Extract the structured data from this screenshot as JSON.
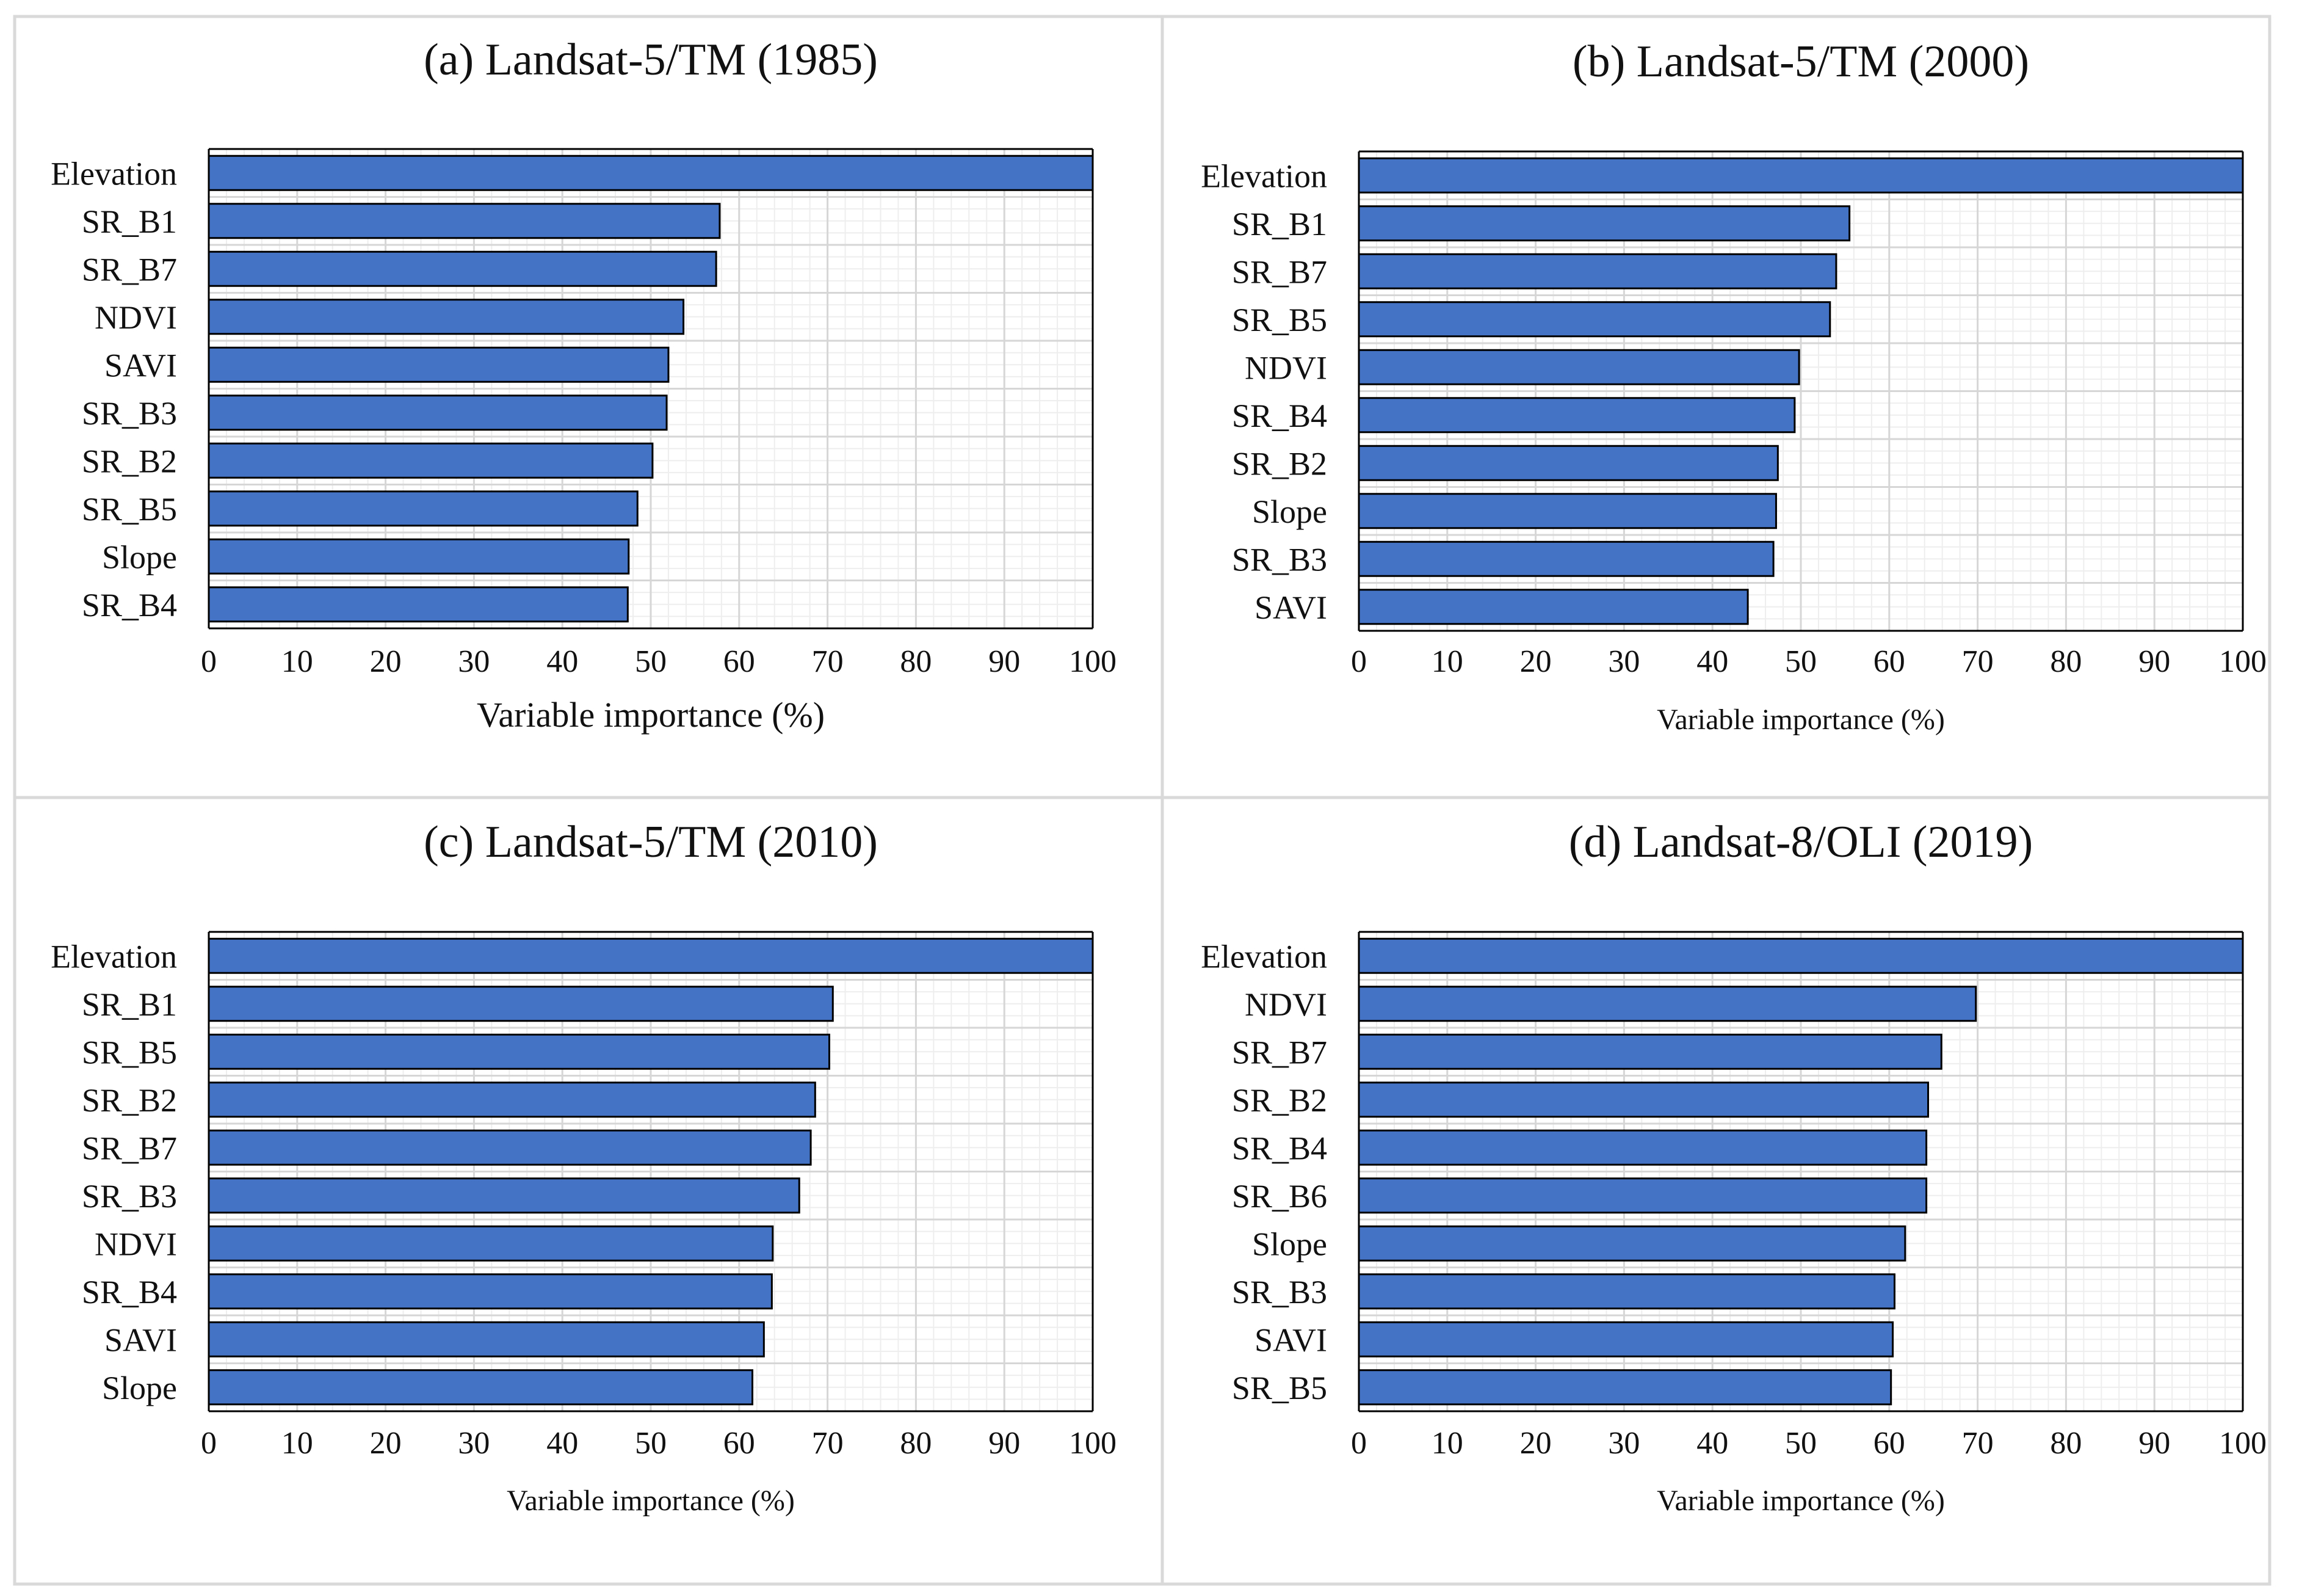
{
  "colors": {
    "bar": "#4472C4",
    "bar_edge": "#000000",
    "grid_major": "#d6d6d6",
    "grid_minor": "#eeeeee",
    "panel_border": "#d9d9d9"
  },
  "chart_data": [
    {
      "type": "bar",
      "orientation": "horizontal",
      "title": "(a) Landsat-5/TM (1985)",
      "xlabel": "Variable importance (%)",
      "xlim": [
        0,
        100
      ],
      "xticks": [
        "0",
        "10",
        "20",
        "30",
        "40",
        "50",
        "60",
        "70",
        "80",
        "90",
        "100"
      ],
      "categories": [
        "Elevation",
        "SR_B1",
        "SR_B7",
        "NDVI",
        "SAVI",
        "SR_B3",
        "SR_B2",
        "SR_B5",
        "Slope",
        "SR_B4"
      ],
      "values": [
        100,
        57.8,
        57.4,
        53.7,
        52.0,
        51.8,
        50.2,
        48.5,
        47.5,
        47.4
      ]
    },
    {
      "type": "bar",
      "orientation": "horizontal",
      "title": "(b) Landsat-5/TM (2000)",
      "xlabel": "Variable importance (%)",
      "xlim": [
        0,
        100
      ],
      "xticks": [
        "0",
        "10",
        "20",
        "30",
        "40",
        "50",
        "60",
        "70",
        "80",
        "90",
        "100"
      ],
      "categories": [
        "Elevation",
        "SR_B1",
        "SR_B7",
        "SR_B5",
        "NDVI",
        "SR_B4",
        "SR_B2",
        "Slope",
        "SR_B3",
        "SAVI"
      ],
      "values": [
        100,
        55.5,
        54.0,
        53.3,
        49.8,
        49.3,
        47.4,
        47.2,
        46.9,
        44.0
      ]
    },
    {
      "type": "bar",
      "orientation": "horizontal",
      "title": "(c) Landsat-5/TM  (2010)",
      "xlabel": "Variable importance (%)",
      "xlim": [
        0,
        100
      ],
      "xticks": [
        "0",
        "10",
        "20",
        "30",
        "40",
        "50",
        "60",
        "70",
        "80",
        "90",
        "100"
      ],
      "categories": [
        "Elevation",
        "SR_B1",
        "SR_B5",
        "SR_B2",
        "SR_B7",
        "SR_B3",
        "NDVI",
        "SR_B4",
        "SAVI",
        "Slope"
      ],
      "values": [
        100,
        70.6,
        70.2,
        68.6,
        68.1,
        66.8,
        63.8,
        63.7,
        62.8,
        61.5
      ]
    },
    {
      "type": "bar",
      "orientation": "horizontal",
      "title": "(d) Landsat-8/OLI (2019)",
      "xlabel": "Variable importance (%)",
      "xlim": [
        0,
        100
      ],
      "xticks": [
        "0",
        "10",
        "20",
        "30",
        "40",
        "50",
        "60",
        "70",
        "80",
        "90",
        "100"
      ],
      "categories": [
        "Elevation",
        "NDVI",
        "SR_B7",
        "SR_B2",
        "SR_B4",
        "SR_B6",
        "Slope",
        "SR_B3",
        "SAVI",
        "SR_B5"
      ],
      "values": [
        100,
        69.8,
        65.9,
        64.4,
        64.2,
        64.2,
        61.8,
        60.6,
        60.4,
        60.2
      ]
    }
  ]
}
